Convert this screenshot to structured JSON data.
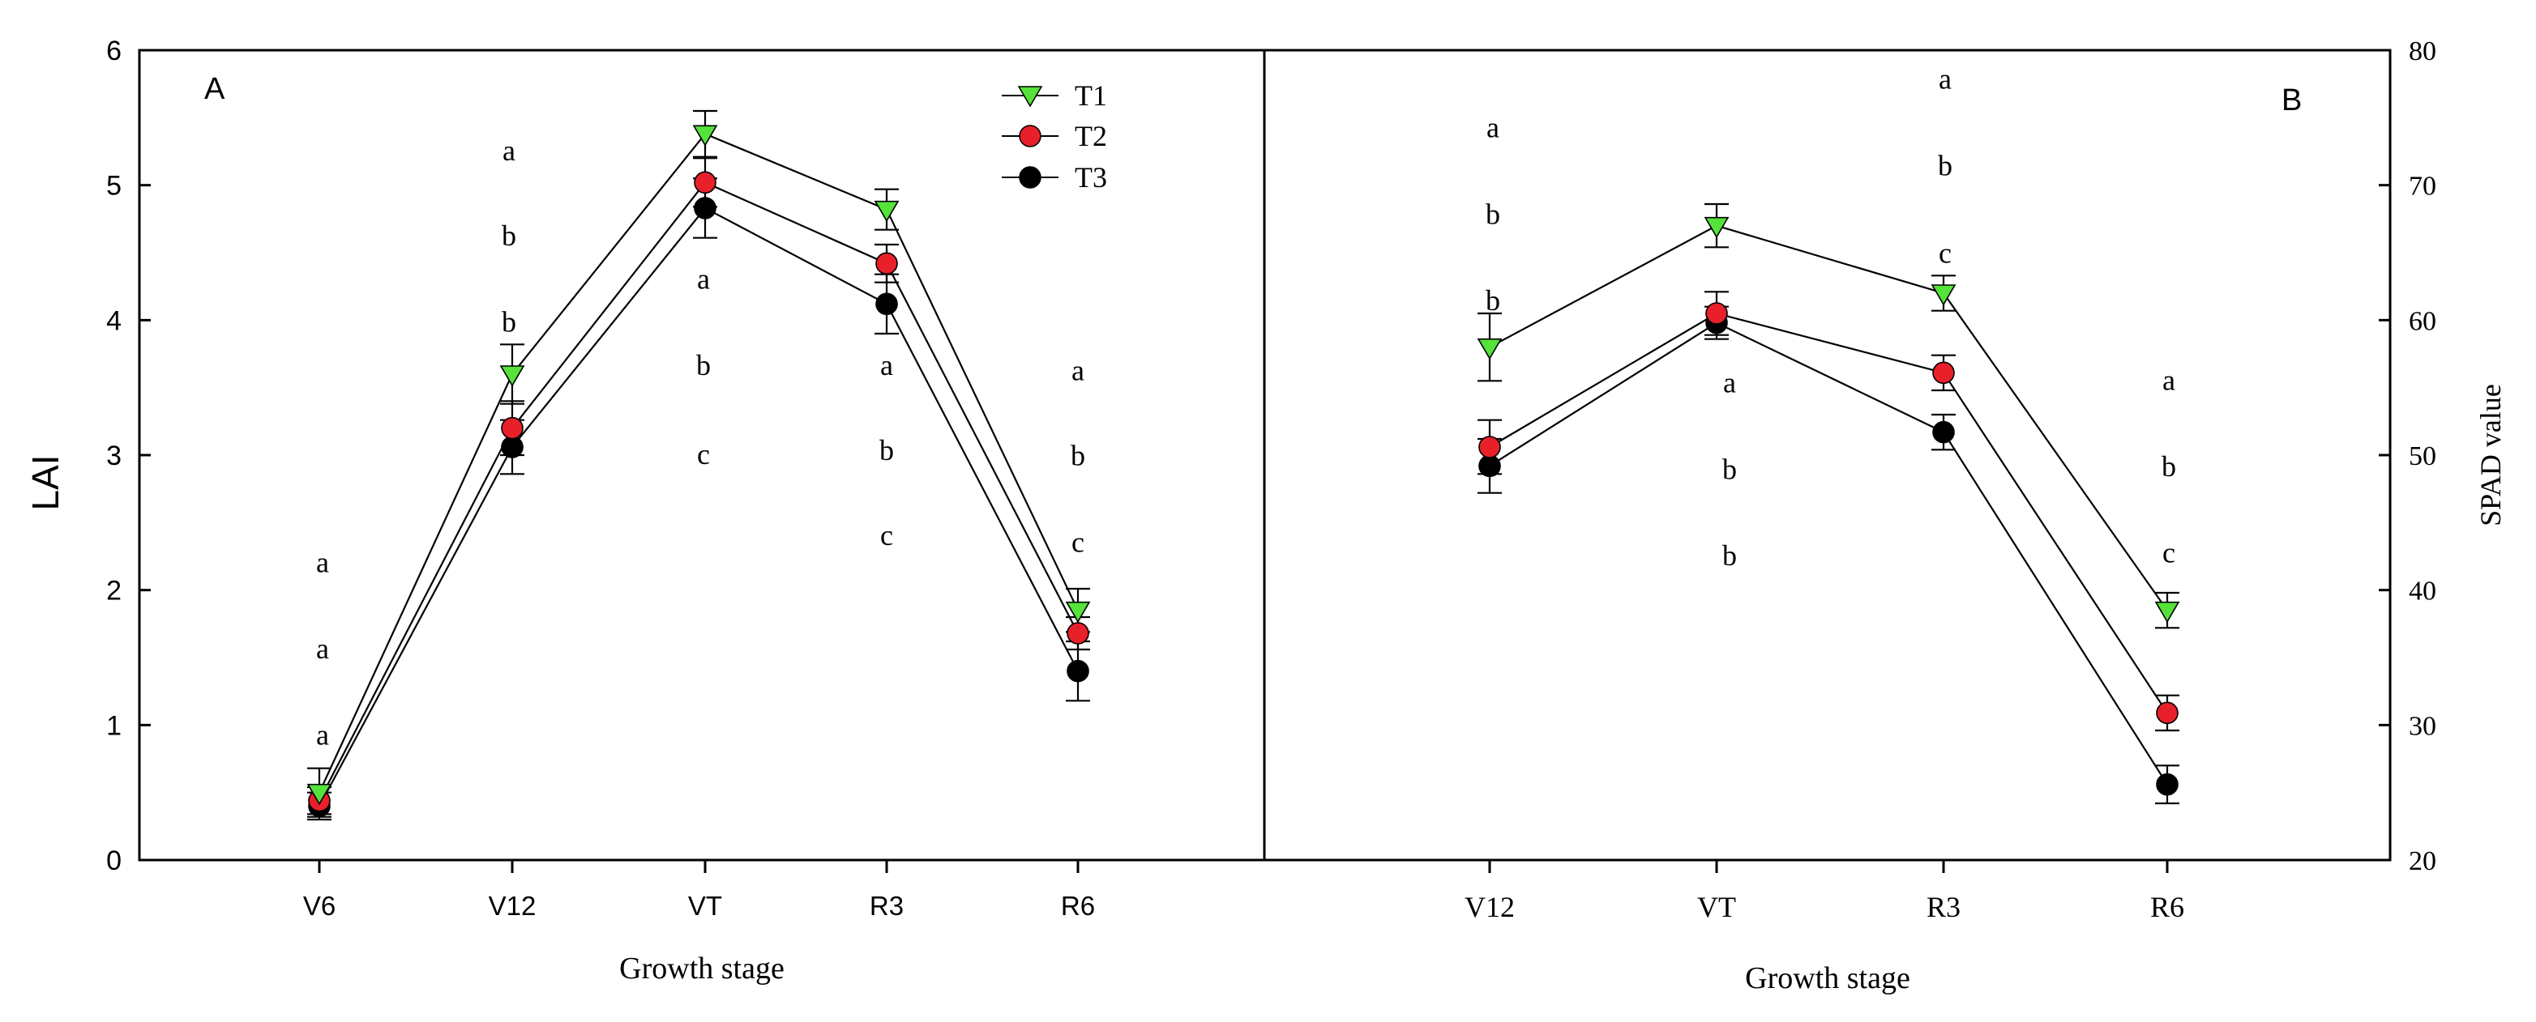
{
  "colors": {
    "T1": "#55e23a",
    "T2": "#e8202a",
    "T3": "#000000",
    "axis": "#000000"
  },
  "chart_data": [
    {
      "type": "line",
      "panel_label": "A",
      "xlabel": "Growth stage",
      "ylabel": "LAI",
      "categories": [
        "V6",
        "V12",
        "VT",
        "R3",
        "R6"
      ],
      "ylim": [
        0,
        6
      ],
      "yticks": [
        "0",
        "1",
        "2",
        "3",
        "4",
        "5",
        "6"
      ],
      "legend_position": "top-right",
      "series": [
        {
          "name": "T1",
          "marker": "triangle-down",
          "values": [
            0.5,
            3.6,
            5.38,
            4.82,
            1.85
          ],
          "errors": [
            0.18,
            0.22,
            0.17,
            0.15,
            0.16
          ]
        },
        {
          "name": "T2",
          "marker": "circle",
          "values": [
            0.44,
            3.2,
            5.02,
            4.42,
            1.68
          ],
          "errors": [
            0.1,
            0.2,
            0.18,
            0.14,
            0.12
          ]
        },
        {
          "name": "T3",
          "marker": "circle",
          "values": [
            0.4,
            3.06,
            4.83,
            4.12,
            1.4
          ],
          "errors": [
            0.1,
            0.2,
            0.22,
            0.22,
            0.22
          ]
        }
      ],
      "significance_letters": [
        [
          "a",
          "a",
          "a"
        ],
        [
          "a",
          "b",
          "b"
        ],
        [
          "a",
          "b",
          "c"
        ],
        [
          "a",
          "b",
          "c"
        ],
        [
          "a",
          "b",
          "c"
        ]
      ],
      "letter_positions_y": [
        [
          2.2,
          1.56,
          0.92
        ],
        [
          5.25,
          4.62,
          3.98
        ],
        [
          4.3,
          3.66,
          3.0
        ],
        [
          3.66,
          3.03,
          2.4
        ],
        [
          3.62,
          2.99,
          2.35
        ]
      ]
    },
    {
      "type": "line",
      "panel_label": "B",
      "xlabel": "Growth stage",
      "ylabel": "SPAD value",
      "categories": [
        "V12",
        "VT",
        "R3",
        "R6"
      ],
      "ylim": [
        20,
        80
      ],
      "yticks": [
        "20",
        "30",
        "40",
        "50",
        "60",
        "70",
        "80"
      ],
      "series": [
        {
          "name": "T1",
          "marker": "triangle-down",
          "values": [
            58,
            67,
            62,
            38.5
          ],
          "errors": [
            2.5,
            1.6,
            1.3,
            1.3
          ]
        },
        {
          "name": "T2",
          "marker": "circle",
          "values": [
            50.6,
            60.5,
            56.1,
            30.9
          ],
          "errors": [
            2.0,
            1.6,
            1.3,
            1.3
          ]
        },
        {
          "name": "T3",
          "marker": "circle",
          "values": [
            49.2,
            59.8,
            51.7,
            25.6
          ],
          "errors": [
            2.0,
            1.2,
            1.3,
            1.4
          ]
        }
      ],
      "significance_letters": [
        [
          "a",
          "b",
          "b"
        ],
        [
          "a",
          "b",
          "b"
        ],
        [
          "a",
          "b",
          "c"
        ],
        [
          "a",
          "b",
          "c"
        ]
      ],
      "letter_positions_y": [
        [
          74.2,
          67.8,
          61.4
        ],
        [
          55.3,
          48.9,
          42.5
        ],
        [
          77.8,
          71.4,
          64.9
        ],
        [
          55.5,
          49.1,
          42.7
        ]
      ]
    }
  ]
}
